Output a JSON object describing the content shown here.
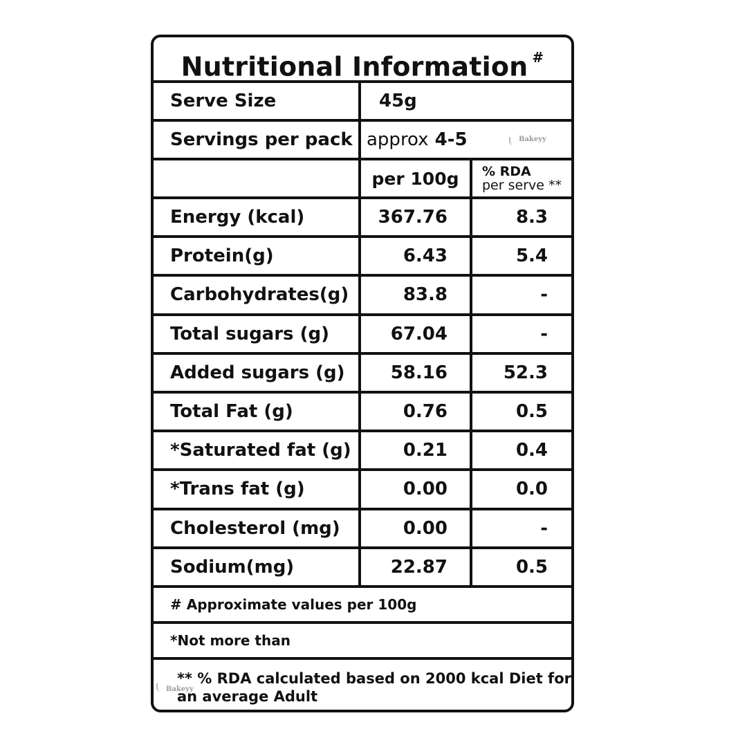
{
  "panel": {
    "title": "Nutritional Information",
    "title_mark": "#",
    "serve_size_label": "Serve Size",
    "serve_size_value": "45g",
    "servings_label": "Servings per pack",
    "servings_prefix": "approx",
    "servings_value": "4-5",
    "col_per100_header": "per 100g",
    "col_rda_header_line1": "% RDA",
    "col_rda_header_line2": "per serve **",
    "rows": [
      {
        "label": "Energy (kcal)",
        "per100": "367.76",
        "rda": "8.3"
      },
      {
        "label": "Protein(g)",
        "per100": "6.43",
        "rda": "5.4"
      },
      {
        "label": "Carbohydrates(g)",
        "per100": "83.8",
        "rda": "-"
      },
      {
        "label": "Total sugars (g)",
        "per100": "67.04",
        "rda": "-"
      },
      {
        "label": "Added sugars (g)",
        "per100": "58.16",
        "rda": "52.3"
      },
      {
        "label": "Total Fat (g)",
        "per100": "0.76",
        "rda": "0.5"
      },
      {
        "label": "*Saturated fat (g)",
        "per100": "0.21",
        "rda": "0.4"
      },
      {
        "label": "*Trans fat (g)",
        "per100": "0.00",
        "rda": "0.0"
      },
      {
        "label": "Cholesterol (mg)",
        "per100": "0.00",
        "rda": "-"
      },
      {
        "label": "Sodium(mg)",
        "per100": "22.87",
        "rda": "0.5"
      }
    ],
    "notes": {
      "approx": "# Approximate values per 100g",
      "not_more": "*Not more than",
      "rda_line1": "** % RDA calculated based on 2000 kcal Diet for",
      "rda_line2": "an average Adult"
    }
  },
  "watermark": "Bakeyy"
}
